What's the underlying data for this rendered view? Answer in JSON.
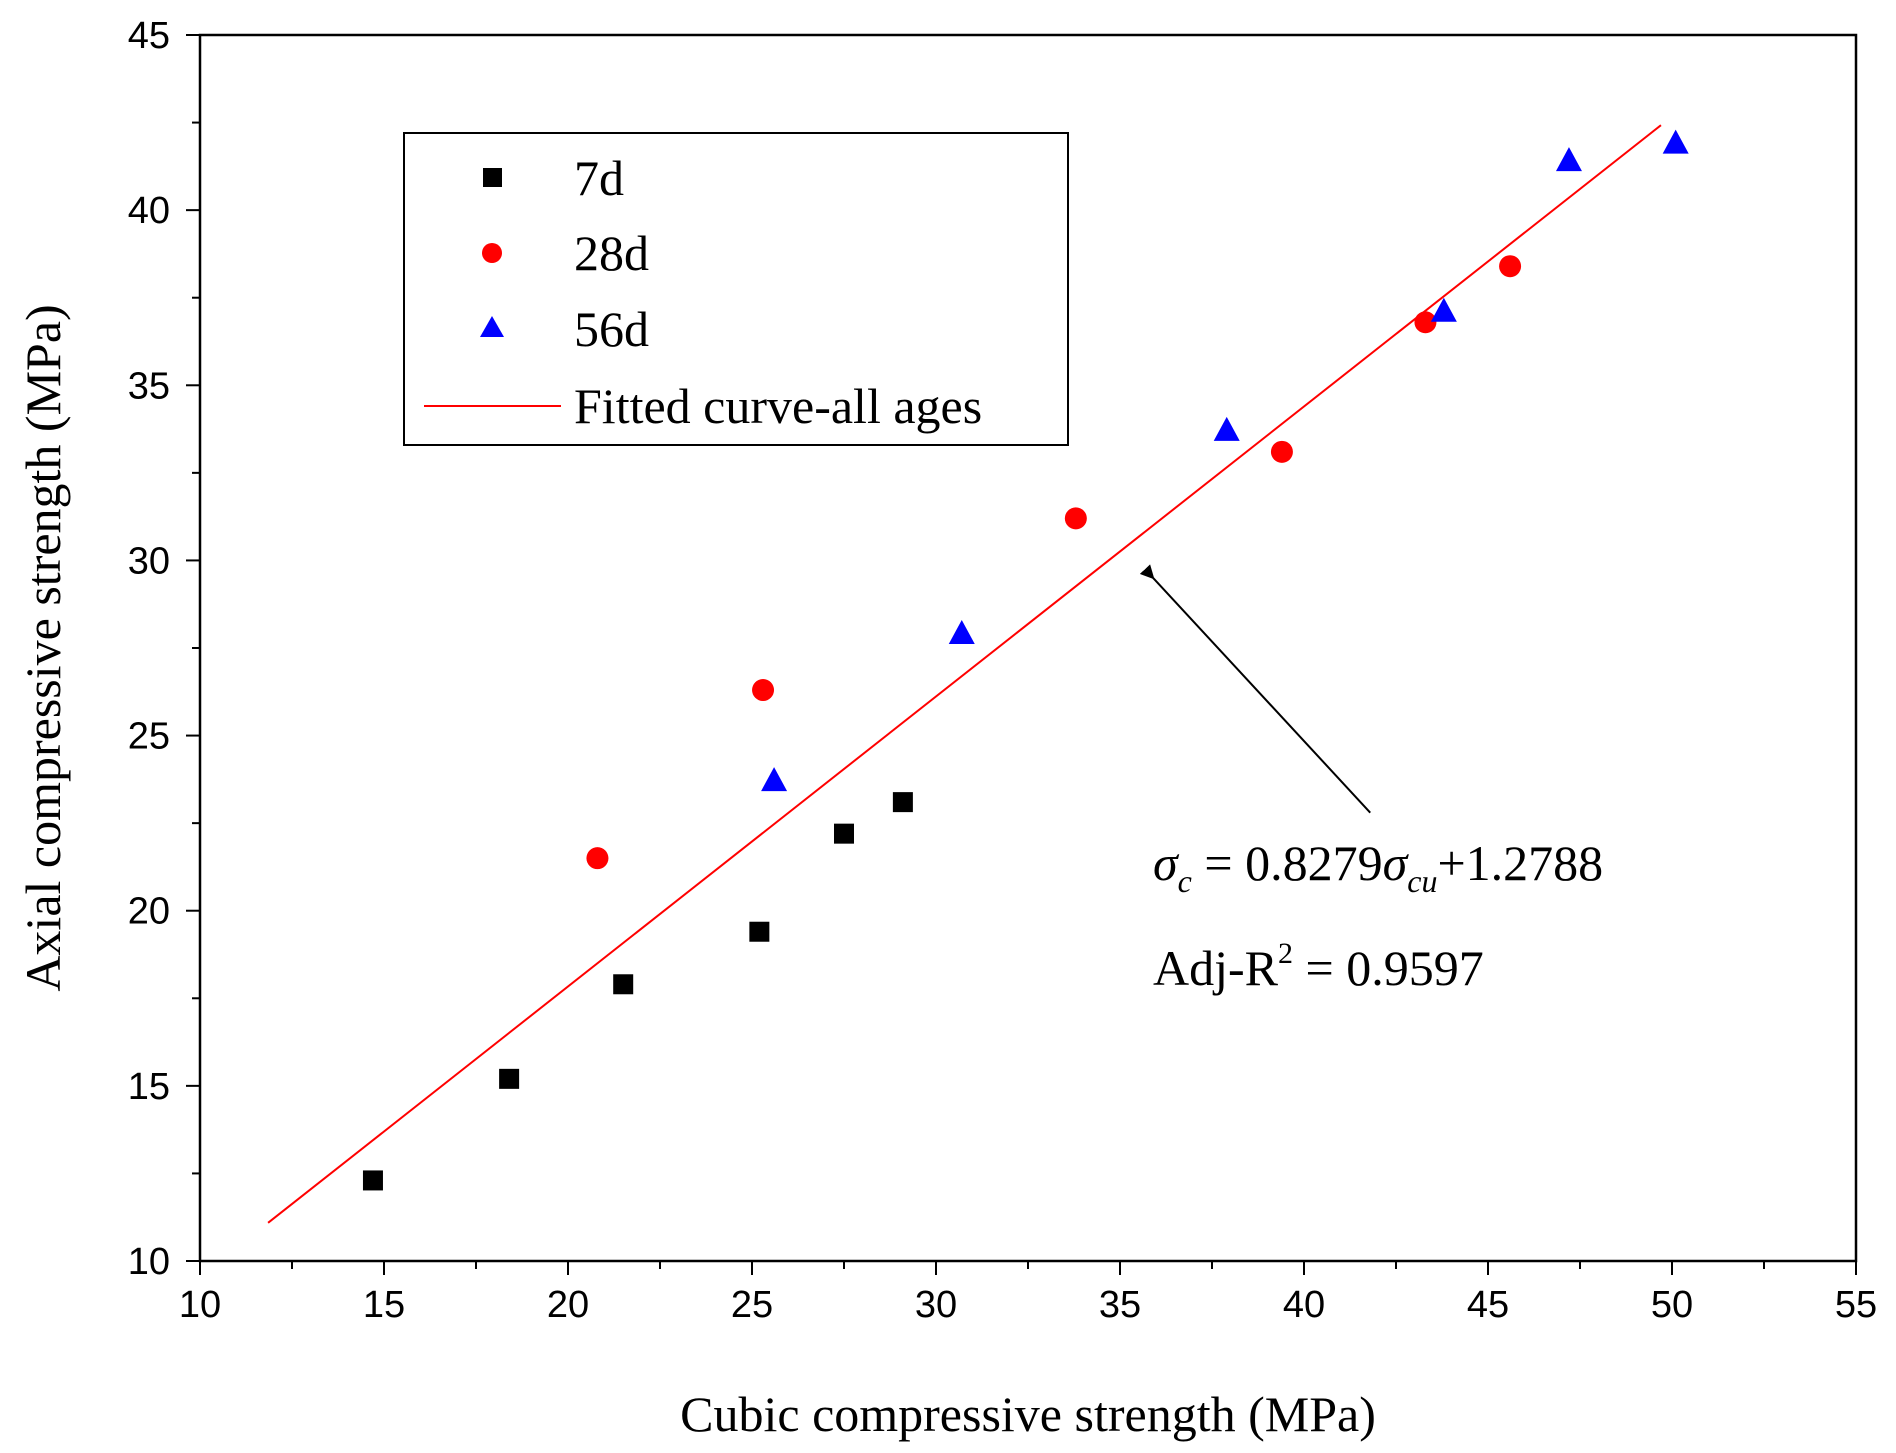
{
  "chart_data": {
    "type": "scatter",
    "title": "",
    "xlabel": "Cubic compressive strength (MPa)",
    "ylabel": "Axial compressive strength (MPa)",
    "xlim": [
      10,
      55
    ],
    "ylim": [
      10,
      45
    ],
    "x_ticks": [
      10,
      15,
      20,
      25,
      30,
      35,
      40,
      45,
      50,
      55
    ],
    "y_ticks": [
      10,
      15,
      20,
      25,
      30,
      35,
      40,
      45
    ],
    "grid": false,
    "legend_position": "top-left",
    "series": [
      {
        "name": "7d",
        "marker": "square",
        "color": "#000000",
        "points": [
          [
            14.7,
            12.3
          ],
          [
            18.4,
            15.2
          ],
          [
            21.5,
            17.9
          ],
          [
            25.2,
            19.4
          ],
          [
            27.5,
            22.2
          ],
          [
            29.1,
            23.1
          ]
        ]
      },
      {
        "name": "28d",
        "marker": "circle",
        "color": "#ff0000",
        "points": [
          [
            20.8,
            21.5
          ],
          [
            25.3,
            26.3
          ],
          [
            33.8,
            31.2
          ],
          [
            39.4,
            33.1
          ],
          [
            43.3,
            36.8
          ],
          [
            45.6,
            38.4
          ]
        ]
      },
      {
        "name": "56d",
        "marker": "triangle",
        "color": "#0000ff",
        "points": [
          [
            25.6,
            23.7
          ],
          [
            30.7,
            27.9
          ],
          [
            37.9,
            33.7
          ],
          [
            43.8,
            37.1
          ],
          [
            47.2,
            41.4
          ],
          [
            50.1,
            41.9
          ]
        ]
      },
      {
        "name": "Fitted curve-all ages",
        "type": "line",
        "color": "#ff0000",
        "slope": 0.8279,
        "intercept": 1.2788,
        "x_range": [
          11.85,
          49.7
        ]
      }
    ],
    "annotation": {
      "equation_symbol": "σ",
      "equation_sub_lhs": "c",
      "equation_mid": " = 0.8279",
      "equation_sub_rhs": "cu",
      "equation_tail": "+1.2788",
      "r2_prefix": "Adj-R",
      "r2_sup": "2",
      "r2_suffix": " = 0.9597",
      "arrow_from": [
        41.8,
        22.8
      ],
      "arrow_to": [
        35.9,
        29.5
      ]
    }
  }
}
